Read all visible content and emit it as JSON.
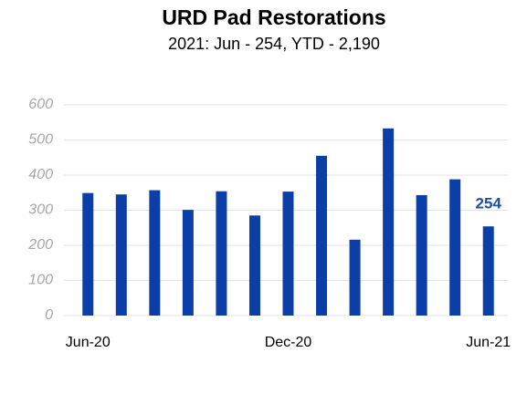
{
  "chart_data": {
    "type": "bar",
    "title": "URD Pad Restorations",
    "subtitle": "2021:  Jun - 254, YTD - 2,190",
    "categories": [
      "Jun-20",
      null,
      null,
      null,
      null,
      null,
      "Dec-20",
      null,
      null,
      null,
      null,
      null,
      "Jun-21"
    ],
    "values": [
      349,
      345,
      357,
      301,
      354,
      285,
      353,
      455,
      216,
      533,
      343,
      388,
      254
    ],
    "color": "#0b3ea6",
    "data_labels": "last",
    "ylim": [
      0,
      600
    ],
    "yticks": [
      0,
      100,
      200,
      300,
      400,
      500,
      600
    ],
    "grid": true
  }
}
